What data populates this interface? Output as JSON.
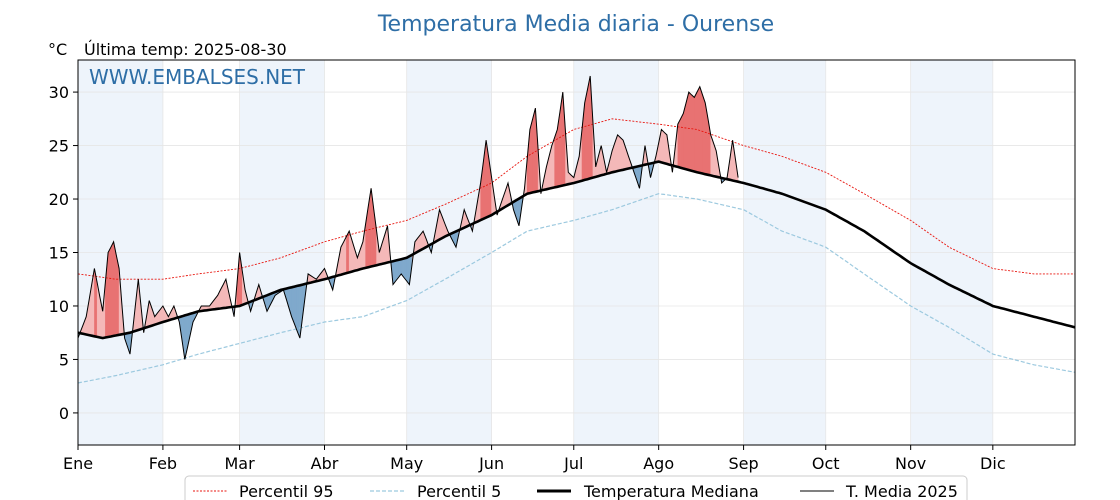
{
  "chart_data": {
    "type": "line",
    "title": "Temperatura Media diaria - Ourense",
    "unit": "°C",
    "last_update": "Última temp: 2025-08-30",
    "watermark": "WWW.EMBALSES.NET",
    "months": [
      "Ene",
      "Feb",
      "Mar",
      "Abr",
      "May",
      "Jun",
      "Jul",
      "Ago",
      "Sep",
      "Oct",
      "Nov",
      "Dic"
    ],
    "y_ticks": [
      0,
      5,
      10,
      15,
      20,
      25,
      30
    ],
    "ylim": [
      -3,
      33
    ],
    "legend_position": "bottom-center",
    "grid": true,
    "colors": {
      "p95": "#e8160f",
      "p5": "#9cc9df",
      "median": "#000000",
      "current": "#000000",
      "above_fill": "#f4b8b8",
      "above_strong": "#e87272",
      "below_fill": "#7fa9cc",
      "band": "#eef4fb"
    },
    "series": [
      {
        "key": "p95",
        "name": "Percentil 95",
        "days": [
          1,
          15,
          32,
          45,
          60,
          75,
          91,
          105,
          121,
          135,
          152,
          165,
          182,
          196,
          213,
          227,
          244,
          258,
          274,
          288,
          305,
          319,
          335,
          350,
          365
        ],
        "values": [
          13.0,
          12.5,
          12.5,
          13.0,
          13.5,
          14.5,
          16.0,
          17.0,
          18.0,
          19.5,
          21.5,
          24.0,
          26.5,
          27.5,
          27.0,
          26.5,
          25.0,
          24.0,
          22.5,
          20.5,
          18.0,
          15.5,
          13.5,
          13.0,
          13.0
        ]
      },
      {
        "key": "p5",
        "name": "Percentil 5",
        "days": [
          1,
          15,
          32,
          45,
          60,
          75,
          91,
          105,
          121,
          135,
          152,
          165,
          182,
          196,
          213,
          227,
          244,
          258,
          274,
          288,
          305,
          319,
          335,
          350,
          365
        ],
        "values": [
          2.8,
          3.5,
          4.5,
          5.5,
          6.5,
          7.5,
          8.5,
          9.0,
          10.5,
          12.5,
          15.0,
          17.0,
          18.0,
          19.0,
          20.5,
          20.0,
          19.0,
          17.0,
          15.5,
          13.0,
          10.0,
          8.0,
          5.5,
          4.5,
          3.8
        ]
      },
      {
        "key": "median",
        "name": "Temperatura Mediana",
        "days": [
          1,
          10,
          20,
          32,
          45,
          60,
          75,
          91,
          105,
          121,
          135,
          152,
          165,
          182,
          196,
          213,
          220,
          227,
          244,
          258,
          274,
          288,
          305,
          319,
          335,
          350,
          365
        ],
        "values": [
          7.5,
          7.0,
          7.5,
          8.5,
          9.5,
          10.0,
          11.5,
          12.5,
          13.5,
          14.5,
          16.5,
          18.5,
          20.5,
          21.5,
          22.5,
          23.5,
          23.0,
          22.5,
          21.5,
          20.5,
          19.0,
          17.0,
          14.0,
          12.0,
          10.0,
          9.0,
          8.0
        ]
      },
      {
        "key": "current",
        "name": "T. Media 2025",
        "days": [
          1,
          4,
          7,
          10,
          12,
          14,
          16,
          18,
          20,
          23,
          25,
          27,
          29,
          32,
          34,
          36,
          38,
          40,
          43,
          46,
          49,
          52,
          55,
          58,
          60,
          62,
          64,
          67,
          70,
          73,
          76,
          79,
          82,
          85,
          88,
          91,
          94,
          97,
          100,
          103,
          105,
          108,
          111,
          114,
          116,
          119,
          122,
          124,
          127,
          130,
          133,
          136,
          139,
          142,
          145,
          148,
          150,
          152,
          154,
          156,
          158,
          160,
          162,
          164,
          166,
          168,
          170,
          172,
          174,
          176,
          178,
          180,
          182,
          184,
          186,
          188,
          190,
          192,
          194,
          196,
          198,
          200,
          202,
          204,
          206,
          208,
          210,
          212,
          214,
          216,
          218,
          220,
          222,
          224,
          226,
          228,
          230,
          232,
          234,
          236,
          238,
          240,
          242
        ],
        "values": [
          7.0,
          9.0,
          13.5,
          9.5,
          15.0,
          16.0,
          13.5,
          7.0,
          5.5,
          12.5,
          7.5,
          10.5,
          9.0,
          10.0,
          9.0,
          10.0,
          8.5,
          5.0,
          8.5,
          10.0,
          10.0,
          11.0,
          12.5,
          9.0,
          15.0,
          11.5,
          9.5,
          12.0,
          9.5,
          11.0,
          11.5,
          9.0,
          7.0,
          13.0,
          12.5,
          13.5,
          11.5,
          15.5,
          17.0,
          14.5,
          16.0,
          21.0,
          15.0,
          17.5,
          12.0,
          13.0,
          12.0,
          16.0,
          17.0,
          15.0,
          19.0,
          17.0,
          15.5,
          19.0,
          17.0,
          21.5,
          25.5,
          22.0,
          18.5,
          20.0,
          21.5,
          19.0,
          17.5,
          21.0,
          26.5,
          28.5,
          20.5,
          23.0,
          25.0,
          26.5,
          30.0,
          22.5,
          22.0,
          24.0,
          29.0,
          31.5,
          23.0,
          25.0,
          22.5,
          24.5,
          26.0,
          25.5,
          24.0,
          22.5,
          21.0,
          25.0,
          22.0,
          24.0,
          26.5,
          26.0,
          22.5,
          27.0,
          28.0,
          30.0,
          29.5,
          30.5,
          29.0,
          26.0,
          24.5,
          21.5,
          22.0,
          25.5,
          22.0
        ]
      }
    ]
  }
}
